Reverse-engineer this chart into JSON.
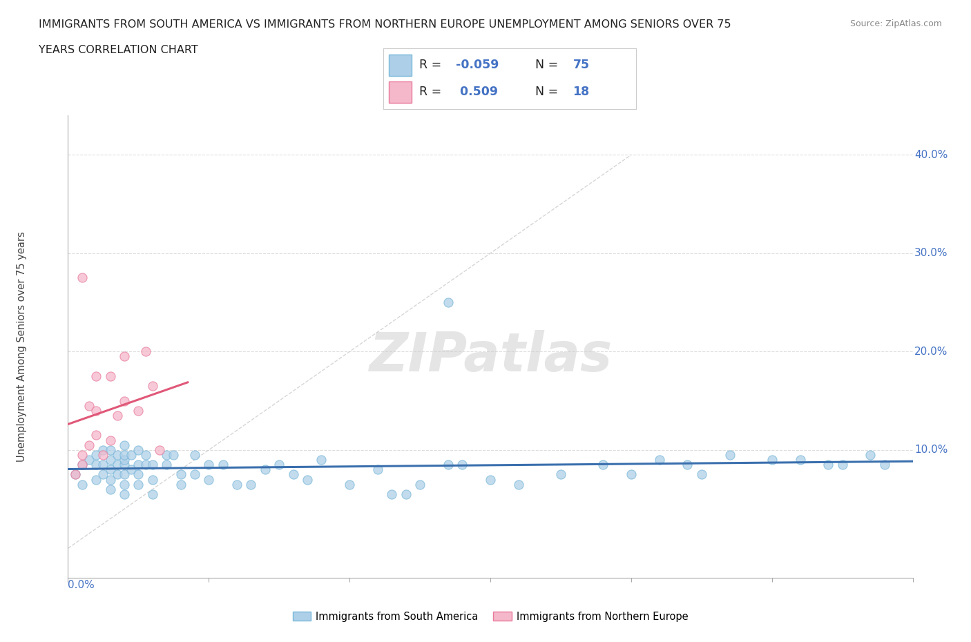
{
  "title_line1": "IMMIGRANTS FROM SOUTH AMERICA VS IMMIGRANTS FROM NORTHERN EUROPE UNEMPLOYMENT AMONG SENIORS OVER 75",
  "title_line2": "YEARS CORRELATION CHART",
  "source": "Source: ZipAtlas.com",
  "ylabel": "Unemployment Among Seniors over 75 years",
  "xlim": [
    0.0,
    0.6
  ],
  "ylim": [
    -0.03,
    0.44
  ],
  "color_blue": "#7ab8d9",
  "color_blue_fill": "#aecfe8",
  "color_pink": "#e87a9a",
  "color_pink_fill": "#f5b8cb",
  "color_trendline_blue": "#3a6fad",
  "color_trendline_pink": "#e05878",
  "color_diagonal": "#cccccc",
  "watermark": "ZIPatlas",
  "blue_scatter_x": [
    0.005,
    0.01,
    0.01,
    0.015,
    0.02,
    0.02,
    0.02,
    0.025,
    0.025,
    0.025,
    0.03,
    0.03,
    0.03,
    0.03,
    0.03,
    0.035,
    0.035,
    0.035,
    0.04,
    0.04,
    0.04,
    0.04,
    0.04,
    0.04,
    0.04,
    0.045,
    0.045,
    0.05,
    0.05,
    0.05,
    0.05,
    0.055,
    0.055,
    0.06,
    0.06,
    0.06,
    0.07,
    0.07,
    0.075,
    0.08,
    0.08,
    0.09,
    0.09,
    0.1,
    0.1,
    0.11,
    0.12,
    0.13,
    0.14,
    0.15,
    0.16,
    0.17,
    0.18,
    0.2,
    0.22,
    0.23,
    0.24,
    0.25,
    0.27,
    0.28,
    0.3,
    0.32,
    0.35,
    0.38,
    0.4,
    0.42,
    0.44,
    0.45,
    0.47,
    0.5,
    0.52,
    0.54,
    0.55,
    0.57,
    0.58
  ],
  "blue_scatter_y": [
    0.075,
    0.065,
    0.085,
    0.09,
    0.07,
    0.085,
    0.095,
    0.075,
    0.085,
    0.1,
    0.06,
    0.07,
    0.08,
    0.09,
    0.1,
    0.075,
    0.085,
    0.095,
    0.055,
    0.065,
    0.075,
    0.085,
    0.09,
    0.095,
    0.105,
    0.08,
    0.095,
    0.065,
    0.075,
    0.085,
    0.1,
    0.085,
    0.095,
    0.055,
    0.07,
    0.085,
    0.085,
    0.095,
    0.095,
    0.065,
    0.075,
    0.075,
    0.095,
    0.07,
    0.085,
    0.085,
    0.065,
    0.065,
    0.08,
    0.085,
    0.075,
    0.07,
    0.09,
    0.065,
    0.08,
    0.055,
    0.055,
    0.065,
    0.085,
    0.085,
    0.07,
    0.065,
    0.075,
    0.085,
    0.075,
    0.09,
    0.085,
    0.075,
    0.095,
    0.09,
    0.09,
    0.085,
    0.085,
    0.095,
    0.085
  ],
  "blue_outliers_x": [
    0.27
  ],
  "blue_outliers_y": [
    0.25
  ],
  "pink_scatter_x": [
    0.005,
    0.01,
    0.01,
    0.015,
    0.015,
    0.02,
    0.02,
    0.02,
    0.025,
    0.03,
    0.03,
    0.035,
    0.04,
    0.04,
    0.05,
    0.055,
    0.06,
    0.065
  ],
  "pink_scatter_y": [
    0.075,
    0.085,
    0.095,
    0.105,
    0.145,
    0.115,
    0.14,
    0.175,
    0.095,
    0.11,
    0.175,
    0.135,
    0.15,
    0.195,
    0.14,
    0.2,
    0.165,
    0.1
  ],
  "pink_outlier_x": [
    0.01
  ],
  "pink_outlier_y": [
    0.275
  ]
}
